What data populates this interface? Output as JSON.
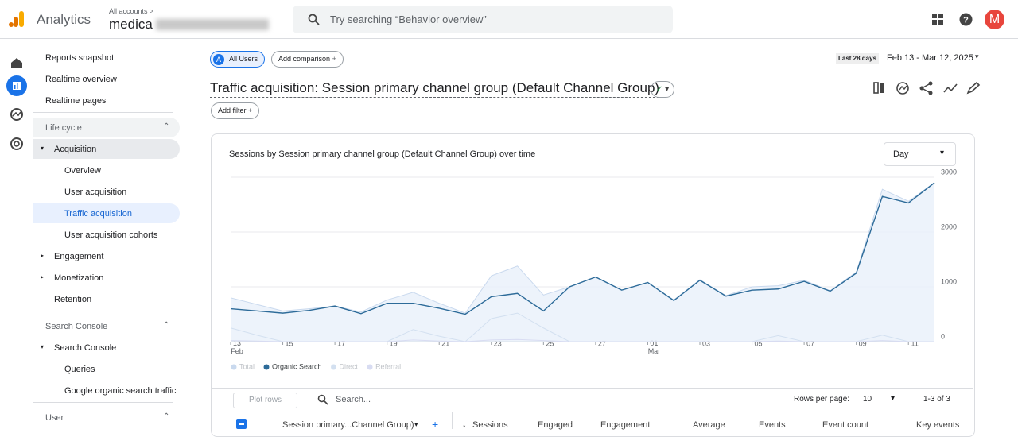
{
  "header": {
    "product": "Analytics",
    "breadcrumb": "All accounts >",
    "account": "medica",
    "search_placeholder": "Try searching “Behavior overview”",
    "avatar": "M"
  },
  "sidebar": {
    "items": [
      {
        "label": "Reports snapshot",
        "kind": "item"
      },
      {
        "label": "Realtime overview",
        "kind": "item"
      },
      {
        "label": "Realtime pages",
        "kind": "item"
      },
      {
        "label": "Life cycle",
        "kind": "section"
      },
      {
        "label": "Acquisition",
        "kind": "group",
        "open": true
      },
      {
        "label": "Overview",
        "kind": "sub"
      },
      {
        "label": "User acquisition",
        "kind": "sub"
      },
      {
        "label": "Traffic acquisition",
        "kind": "sub",
        "selected": true
      },
      {
        "label": "User acquisition cohorts",
        "kind": "sub"
      },
      {
        "label": "Engagement",
        "kind": "group"
      },
      {
        "label": "Monetization",
        "kind": "group"
      },
      {
        "label": "Retention",
        "kind": "item2"
      },
      {
        "label": "Search Console",
        "kind": "section"
      },
      {
        "label": "Search Console",
        "kind": "group",
        "open": true
      },
      {
        "label": "Queries",
        "kind": "sub"
      },
      {
        "label": "Google organic search traffic",
        "kind": "sub"
      },
      {
        "label": "User",
        "kind": "section"
      }
    ]
  },
  "toolbar": {
    "segment_badge": "A",
    "segment": "All Users",
    "add_comparison": "Add comparison",
    "range_label": "Last 28 days",
    "range": "Feb 13 - Mar 12, 2025",
    "add_filter": "Add filter"
  },
  "report": {
    "title": "Traffic acquisition: Session primary channel group (Default Channel Group)"
  },
  "chart_data": {
    "type": "line",
    "title": "Sessions by Session primary channel group (Default Channel Group) over time",
    "granularity": "Day",
    "categories": [
      "13 Feb",
      null,
      "15",
      null,
      "17",
      null,
      "19",
      null,
      "21",
      null,
      "23",
      null,
      "25",
      null,
      "27",
      null,
      "01 Mar",
      null,
      "03",
      null,
      "05",
      null,
      "07",
      null,
      "09",
      null,
      "11",
      null
    ],
    "series": [
      {
        "name": "Total",
        "color": "#c9d9ee",
        "area": true,
        "values": [
          800,
          680,
          560,
          600,
          650,
          540,
          760,
          900,
          700,
          520,
          1200,
          1380,
          850,
          1000,
          1180,
          940,
          1080,
          760,
          1130,
          840,
          1000,
          1020,
          1120,
          930,
          1270,
          2780,
          2560,
          2900
        ]
      },
      {
        "name": "Organic Search",
        "color": "#2d6b99",
        "values": [
          600,
          560,
          520,
          570,
          650,
          510,
          700,
          700,
          610,
          500,
          820,
          880,
          560,
          1000,
          1180,
          940,
          1080,
          750,
          1120,
          830,
          940,
          960,
          1100,
          920,
          1250,
          2650,
          2530,
          2900
        ]
      },
      {
        "name": "Direct",
        "color": "#d3e0f0",
        "values": [
          250,
          120,
          0,
          0,
          0,
          0,
          0,
          220,
          100,
          0,
          420,
          520,
          250,
          0,
          0,
          0,
          0,
          0,
          0,
          0,
          0,
          110,
          0,
          0,
          0,
          120,
          0,
          0
        ]
      },
      {
        "name": "Referral",
        "color": "#d8dcf2",
        "values": [
          20,
          10,
          0,
          0,
          0,
          0,
          0,
          30,
          10,
          0,
          30,
          40,
          20,
          0,
          0,
          0,
          0,
          0,
          0,
          0,
          0,
          10,
          0,
          0,
          0,
          20,
          0,
          0
        ]
      }
    ],
    "ylim": [
      0,
      3000
    ],
    "yticks": [
      0,
      1000,
      2000,
      3000
    ],
    "grid": true,
    "legend": "bottom-left"
  },
  "table": {
    "plot_rows": "Plot rows",
    "search_placeholder": "Search...",
    "rows_per_page_label": "Rows per page:",
    "rows_per_page": "10",
    "pagination": "1-3 of 3",
    "columns": [
      "Session primary...Channel Group)",
      "Sessions",
      "Engaged",
      "Engagement",
      "Average",
      "Events",
      "Event count",
      "Key events"
    ]
  }
}
